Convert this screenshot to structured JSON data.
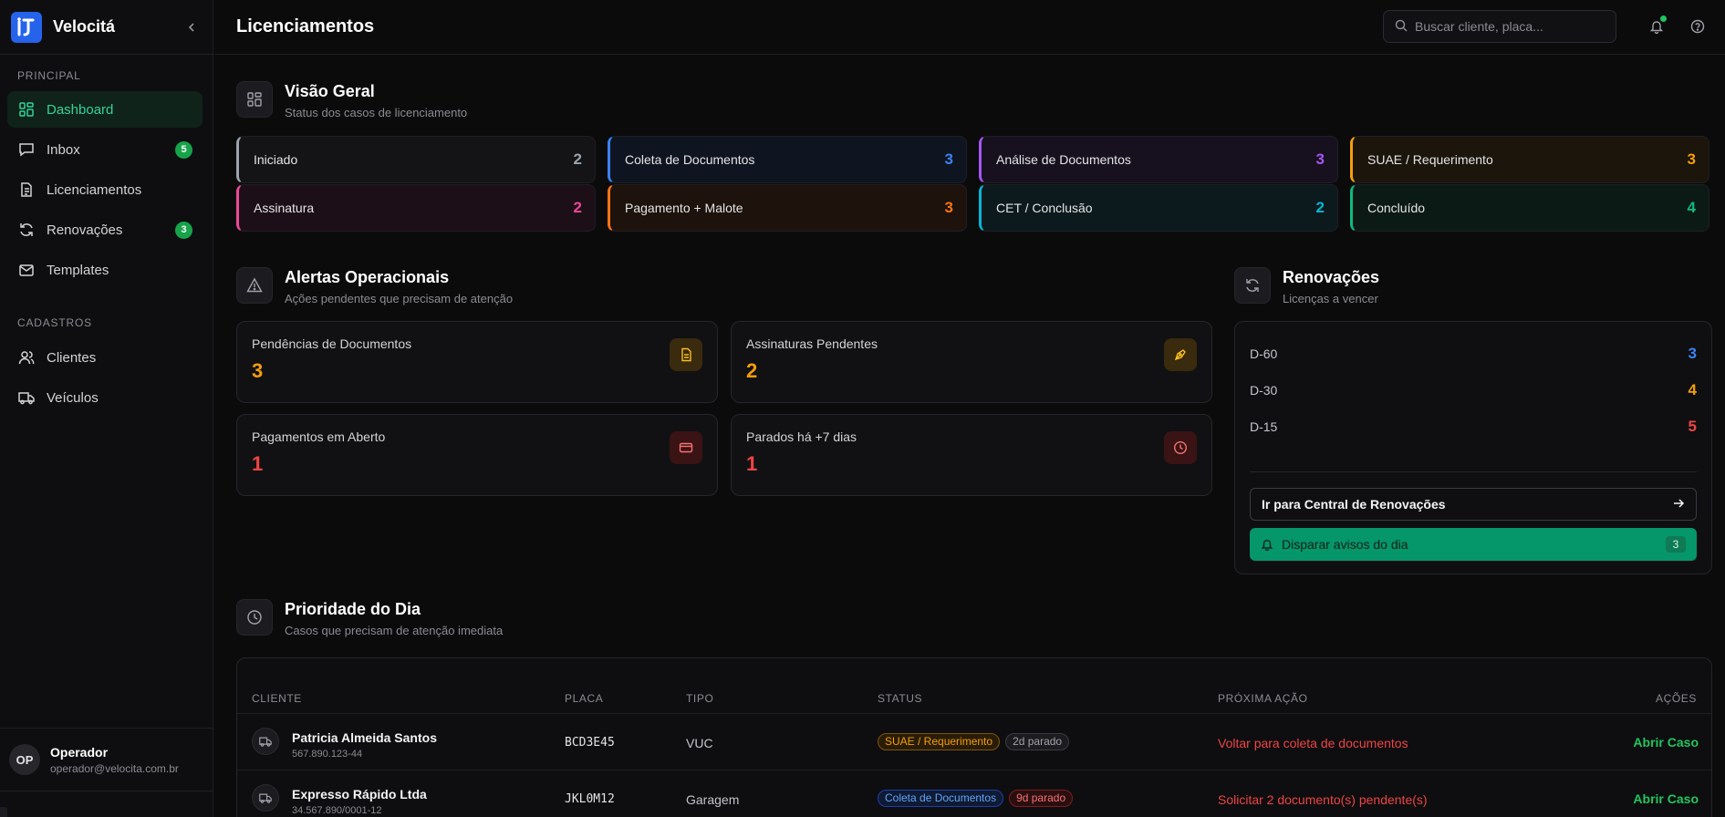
{
  "app": {
    "name": "Velocitá"
  },
  "sidebar": {
    "principal_label": "PRINCIPAL",
    "cadastros_label": "CADASTROS",
    "items": [
      {
        "label": "Dashboard",
        "icon": "dashboard-icon",
        "active": true
      },
      {
        "label": "Inbox",
        "icon": "inbox-icon",
        "badge": "5"
      },
      {
        "label": "Licenciamentos",
        "icon": "document-icon"
      },
      {
        "label": "Renovações",
        "icon": "refresh-icon",
        "badge": "3"
      },
      {
        "label": "Templates",
        "icon": "mail-icon"
      },
      {
        "label": "Clientes",
        "icon": "users-icon"
      },
      {
        "label": "Veículos",
        "icon": "truck-icon"
      }
    ],
    "user": {
      "initials": "OP",
      "name": "Operador",
      "email": "operador@velocita.com.br"
    }
  },
  "header": {
    "title": "Licenciamentos",
    "search_placeholder": "Buscar cliente, placa..."
  },
  "overview": {
    "title": "Visão Geral",
    "subtitle": "Status dos casos de licenciamento",
    "stages": [
      {
        "label": "Iniciado",
        "count": "2",
        "color": "#9ca3af",
        "bg": "#141416"
      },
      {
        "label": "Coleta de Documentos",
        "count": "3",
        "color": "#3b82f6",
        "bg": "#0f1520"
      },
      {
        "label": "Análise de Documentos",
        "count": "3",
        "color": "#a855f7",
        "bg": "#17111f"
      },
      {
        "label": "SUAE / Requerimento",
        "count": "3",
        "color": "#f59e0b",
        "bg": "#1c150b"
      },
      {
        "label": "Assinatura",
        "count": "2",
        "color": "#ec4899",
        "bg": "#1d0f17"
      },
      {
        "label": "Pagamento + Malote",
        "count": "3",
        "color": "#f97316",
        "bg": "#1d130c"
      },
      {
        "label": "CET / Conclusão",
        "count": "2",
        "color": "#06b6d4",
        "bg": "#0c1a1d"
      },
      {
        "label": "Concluído",
        "count": "4",
        "color": "#10b981",
        "bg": "#0c1a15"
      }
    ]
  },
  "alerts": {
    "title": "Alertas Operacionais",
    "subtitle": "Ações pendentes que precisam de atenção",
    "items": [
      {
        "label": "Pendências de Documentos",
        "value": "3",
        "color": "#f59e0b",
        "icon": "file-text-icon"
      },
      {
        "label": "Assinaturas Pendentes",
        "value": "2",
        "color": "#f59e0b",
        "icon": "pen-tool-icon"
      },
      {
        "label": "Pagamentos em Aberto",
        "value": "1",
        "color": "#ef4444",
        "icon": "credit-card-icon"
      },
      {
        "label": "Parados há +7 dias",
        "value": "1",
        "color": "#ef4444",
        "icon": "clock-icon"
      }
    ]
  },
  "renewals": {
    "title": "Renovações",
    "subtitle": "Licenças a vencer",
    "rows": [
      {
        "label": "D-60",
        "value": "3",
        "color": "#3b82f6"
      },
      {
        "label": "D-30",
        "value": "4",
        "color": "#f59e0b"
      },
      {
        "label": "D-15",
        "value": "5",
        "color": "#ef4444"
      }
    ],
    "goto_label": "Ir para Central de Renovações",
    "notify_label": "Disparar avisos do dia",
    "notify_count": "3"
  },
  "priority": {
    "title": "Prioridade do Dia",
    "subtitle": "Casos que precisam de atenção imediata",
    "columns": [
      "CLIENTE",
      "PLACA",
      "TIPO",
      "STATUS",
      "PRÓXIMA AÇÃO",
      "AÇÕES"
    ],
    "rows": [
      {
        "name": "Patricia Almeida Santos",
        "doc": "567.890.123-44",
        "plate": "BCD3E45",
        "type": "VUC",
        "status": "SUAE / Requerimento",
        "status_color": "#f59e0b",
        "stalled": "2d parado",
        "stalled_color": "#9ca3af",
        "next": "Voltar para coleta de documentos",
        "action": "Abrir Caso"
      },
      {
        "name": "Expresso Rápido Ltda",
        "doc": "34.567.890/0001-12",
        "plate": "JKL0M12",
        "type": "Garagem",
        "status": "Coleta de Documentos",
        "status_color": "#3b82f6",
        "stalled": "9d parado",
        "stalled_color": "#ef4444",
        "next": "Solicitar 2 documento(s) pendente(s)",
        "action": "Abrir Caso"
      }
    ]
  }
}
